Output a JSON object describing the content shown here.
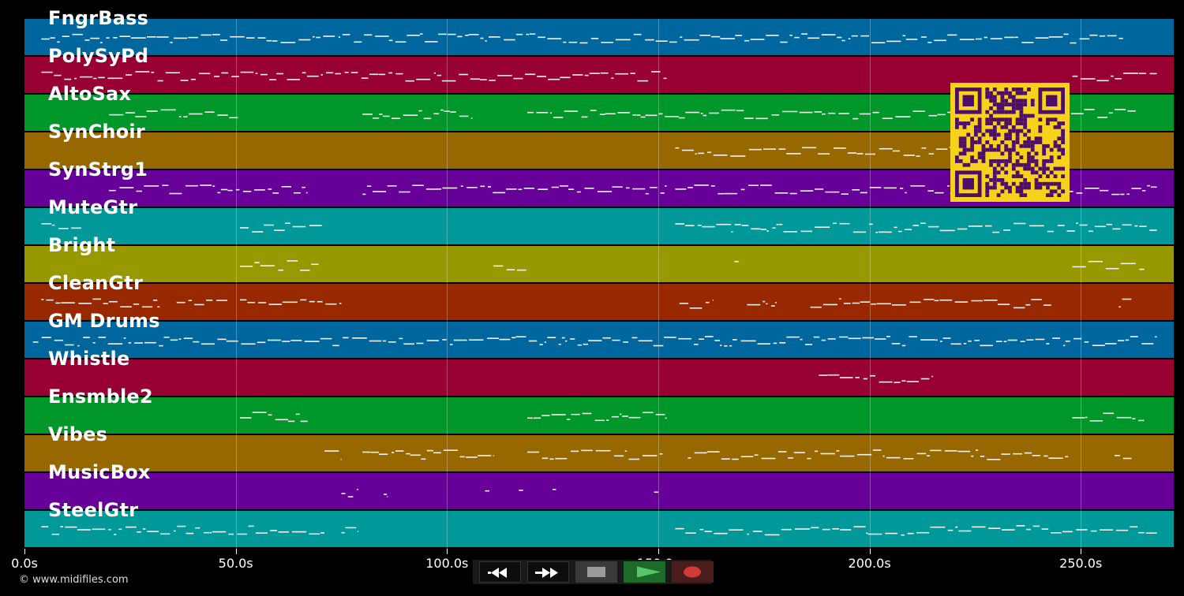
{
  "tracks": [
    {
      "name": "FngrBass",
      "color": "#00679e"
    },
    {
      "name": "PolySyPd",
      "color": "#980034"
    },
    {
      "name": "AltoSax",
      "color": "#00972a"
    },
    {
      "name": "SynChoir",
      "color": "#986800"
    },
    {
      "name": "SynStrg1",
      "color": "#670098"
    },
    {
      "name": "MuteGtr",
      "color": "#009898"
    },
    {
      "name": "Bright",
      "color": "#989800"
    },
    {
      "name": "CleanGtr",
      "color": "#982800"
    },
    {
      "name": "GM Drums",
      "color": "#00679e"
    },
    {
      "name": "Whistle",
      "color": "#980034"
    },
    {
      "name": "Ensmble2",
      "color": "#00972a"
    },
    {
      "name": "Vibes",
      "color": "#986800"
    },
    {
      "name": "MusicBox",
      "color": "#670098"
    },
    {
      "name": "SteelGtr",
      "color": "#009898"
    }
  ],
  "timeline": {
    "duration_s": 272,
    "ticks": [
      {
        "t": 0,
        "label": "0.0s"
      },
      {
        "t": 50,
        "label": "50.0s"
      },
      {
        "t": 100,
        "label": "100.0s"
      },
      {
        "t": 150,
        "label": "150.0s"
      },
      {
        "t": 200,
        "label": "200.0s"
      },
      {
        "t": 250,
        "label": "250.0s"
      }
    ]
  },
  "transport": {
    "buttons": [
      {
        "name": "rewind-button",
        "icon": "rewind-icon"
      },
      {
        "name": "fast-forward-button",
        "icon": "fast-forward-icon"
      },
      {
        "name": "stop-button",
        "icon": "stop-icon"
      },
      {
        "name": "play-button",
        "icon": "play-icon"
      },
      {
        "name": "record-button",
        "icon": "record-icon"
      }
    ]
  },
  "qr_code": {
    "icon": "qr-code-icon",
    "color": "#f6d21a",
    "fg": "#4c0d6b"
  },
  "footer": {
    "copyright": "© www.midifiles.com"
  }
}
